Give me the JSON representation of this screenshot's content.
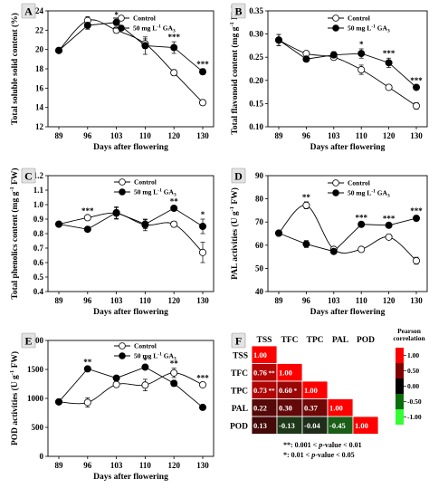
{
  "legend": {
    "series1": "Control",
    "series2": "50 mg L",
    "sup": "-1",
    "tail": " GA",
    "sub": "3"
  },
  "chart_data": [
    {
      "id": "A",
      "type": "line",
      "ylabel": "Total soluble solid content (%)",
      "xlabel": "Days after flowering",
      "x": [
        89,
        96,
        103,
        110,
        120,
        130
      ],
      "ylim": [
        12,
        24
      ],
      "yticks": [
        12,
        14,
        16,
        18,
        20,
        22,
        24
      ],
      "series": [
        {
          "name": "Control",
          "values": [
            19.9,
            23.0,
            22.0,
            20.6,
            17.6,
            14.5
          ],
          "err": [
            0.1,
            0.4,
            0.3,
            0.5,
            0.3,
            0.3
          ]
        },
        {
          "name": "50 mg L-1 GA3",
          "values": [
            19.9,
            22.5,
            22.8,
            20.4,
            20.2,
            17.7
          ],
          "err": [
            0.1,
            0.4,
            0.3,
            0.9,
            0.6,
            0.3
          ]
        }
      ],
      "significance": [
        {
          "x": 103,
          "label": "*"
        },
        {
          "x": 120,
          "label": "***"
        },
        {
          "x": 130,
          "label": "***"
        }
      ]
    },
    {
      "id": "B",
      "type": "line",
      "ylabel": "Total flavonoid content (mg g",
      "ylabel_sup": "-1",
      "ylabel_tail": " FW)",
      "xlabel": "Days after flowering",
      "x": [
        89,
        96,
        103,
        110,
        120,
        130
      ],
      "ylim": [
        0.1,
        0.35
      ],
      "yticks": [
        0.1,
        0.15,
        0.2,
        0.25,
        0.3,
        0.35
      ],
      "series": [
        {
          "name": "Control",
          "values": [
            0.287,
            0.258,
            0.25,
            0.223,
            0.185,
            0.145
          ],
          "err": [
            0.012,
            0.005,
            0.006,
            0.01,
            0.005,
            0.007
          ]
        },
        {
          "name": "50 mg L-1 GA3",
          "values": [
            0.287,
            0.246,
            0.255,
            0.258,
            0.238,
            0.185
          ],
          "err": [
            0.012,
            0.005,
            0.007,
            0.01,
            0.01,
            0.005
          ]
        }
      ],
      "significance": [
        {
          "x": 110,
          "label": "*"
        },
        {
          "x": 120,
          "label": "***"
        },
        {
          "x": 130,
          "label": "***"
        }
      ]
    },
    {
      "id": "C",
      "type": "line",
      "ylabel": "Total phenolics content (mg g",
      "ylabel_sup": "-1",
      "ylabel_tail": " FW)",
      "xlabel": "Days after flowering",
      "x": [
        89,
        96,
        103,
        110,
        120,
        130
      ],
      "ylim": [
        0.4,
        1.2
      ],
      "yticks": [
        0.4,
        0.5,
        0.6,
        0.7,
        0.8,
        0.9,
        1.0,
        1.1,
        1.2
      ],
      "series": [
        {
          "name": "Control",
          "values": [
            0.865,
            0.91,
            0.94,
            0.86,
            0.865,
            0.67
          ],
          "err": [
            0.01,
            0.015,
            0.04,
            0.04,
            0.02,
            0.07
          ]
        },
        {
          "name": "50 mg L-1 GA3",
          "values": [
            0.865,
            0.83,
            0.945,
            0.865,
            0.975,
            0.85
          ],
          "err": [
            0.01,
            0.01,
            0.04,
            0.03,
            0.015,
            0.05
          ]
        }
      ],
      "significance": [
        {
          "x": 96,
          "label": "***"
        },
        {
          "x": 120,
          "label": "**"
        },
        {
          "x": 130,
          "label": "*"
        }
      ]
    },
    {
      "id": "D",
      "type": "line",
      "ylabel": "PAL activities (U g",
      "ylabel_sup": "-1",
      "ylabel_tail": " FW)",
      "xlabel": "Days after flowering",
      "x": [
        89,
        96,
        103,
        110,
        120,
        130
      ],
      "ylim": [
        40,
        90
      ],
      "yticks": [
        40,
        50,
        60,
        70,
        80,
        90
      ],
      "series": [
        {
          "name": "Control",
          "values": [
            65.2,
            77.2,
            58.2,
            58.2,
            63.5,
            53.3
          ],
          "err": [
            0.5,
            1.5,
            1.0,
            0.8,
            1.0,
            1.5
          ]
        },
        {
          "name": "50 mg L-1 GA3",
          "values": [
            65.2,
            60.5,
            57.3,
            69.0,
            68.6,
            71.6
          ],
          "err": [
            0.5,
            1.5,
            0.8,
            0.8,
            0.8,
            1.2
          ]
        }
      ],
      "significance": [
        {
          "x": 96,
          "label": "**"
        },
        {
          "x": 110,
          "label": "***"
        },
        {
          "x": 120,
          "label": "***"
        },
        {
          "x": 130,
          "label": "***"
        }
      ]
    },
    {
      "id": "E",
      "type": "line",
      "ylabel": "POD activities (U g",
      "ylabel_sup": "-1",
      "ylabel_tail": " FW)",
      "xlabel": "Days after flowering",
      "x": [
        89,
        96,
        103,
        110,
        120,
        130
      ],
      "ylim": [
        0,
        2000
      ],
      "yticks": [
        0,
        500,
        1000,
        1500,
        2000
      ],
      "series": [
        {
          "name": "Control",
          "values": [
            940,
            930,
            1240,
            1230,
            1440,
            1235
          ],
          "err": [
            20,
            80,
            40,
            100,
            80,
            40
          ]
        },
        {
          "name": "50 mg L-1 GA3",
          "values": [
            940,
            1510,
            1350,
            1540,
            1260,
            845
          ],
          "err": [
            20,
            40,
            40,
            40,
            50,
            20
          ]
        }
      ],
      "significance": [
        {
          "x": 96,
          "label": "**"
        },
        {
          "x": 110,
          "label": "*"
        },
        {
          "x": 120,
          "label": "**"
        },
        {
          "x": 130,
          "label": "***"
        }
      ]
    },
    {
      "id": "F",
      "type": "heatmap",
      "labels": [
        "TSS",
        "TFC",
        "TPC",
        "PAL",
        "POD"
      ],
      "cells": [
        {
          "row": 0,
          "col": 0,
          "value": 1.0,
          "text": "1.00",
          "stars": ""
        },
        {
          "row": 1,
          "col": 0,
          "value": 0.76,
          "text": "0.76",
          "stars": "**"
        },
        {
          "row": 1,
          "col": 1,
          "value": 1.0,
          "text": "1.00",
          "stars": ""
        },
        {
          "row": 2,
          "col": 0,
          "value": 0.73,
          "text": "0.73",
          "stars": "**"
        },
        {
          "row": 2,
          "col": 1,
          "value": 0.6,
          "text": "0.60",
          "stars": "*"
        },
        {
          "row": 2,
          "col": 2,
          "value": 1.0,
          "text": "1.00",
          "stars": ""
        },
        {
          "row": 3,
          "col": 0,
          "value": 0.22,
          "text": "0.22",
          "stars": ""
        },
        {
          "row": 3,
          "col": 1,
          "value": 0.3,
          "text": "0.30",
          "stars": ""
        },
        {
          "row": 3,
          "col": 2,
          "value": 0.37,
          "text": "0.37",
          "stars": ""
        },
        {
          "row": 3,
          "col": 3,
          "value": 1.0,
          "text": "1.00",
          "stars": ""
        },
        {
          "row": 4,
          "col": 0,
          "value": 0.13,
          "text": "0.13",
          "stars": ""
        },
        {
          "row": 4,
          "col": 1,
          "value": -0.13,
          "text": "-0.13",
          "stars": ""
        },
        {
          "row": 4,
          "col": 2,
          "value": -0.04,
          "text": "-0.04",
          "stars": ""
        },
        {
          "row": 4,
          "col": 3,
          "value": -0.45,
          "text": "-0.45",
          "stars": ""
        },
        {
          "row": 4,
          "col": 4,
          "value": 1.0,
          "text": "1.00",
          "stars": ""
        }
      ],
      "colorbar": {
        "title_line1": "Pearson",
        "title_line2": "correlation",
        "ticks": [
          "1.00",
          "0.50",
          "0.00",
          "-0.50",
          "-1.00"
        ]
      },
      "notes": [
        "**: 0.001 < p-value < 0.01",
        "*: 0.01 < p-value < 0.05"
      ]
    }
  ]
}
